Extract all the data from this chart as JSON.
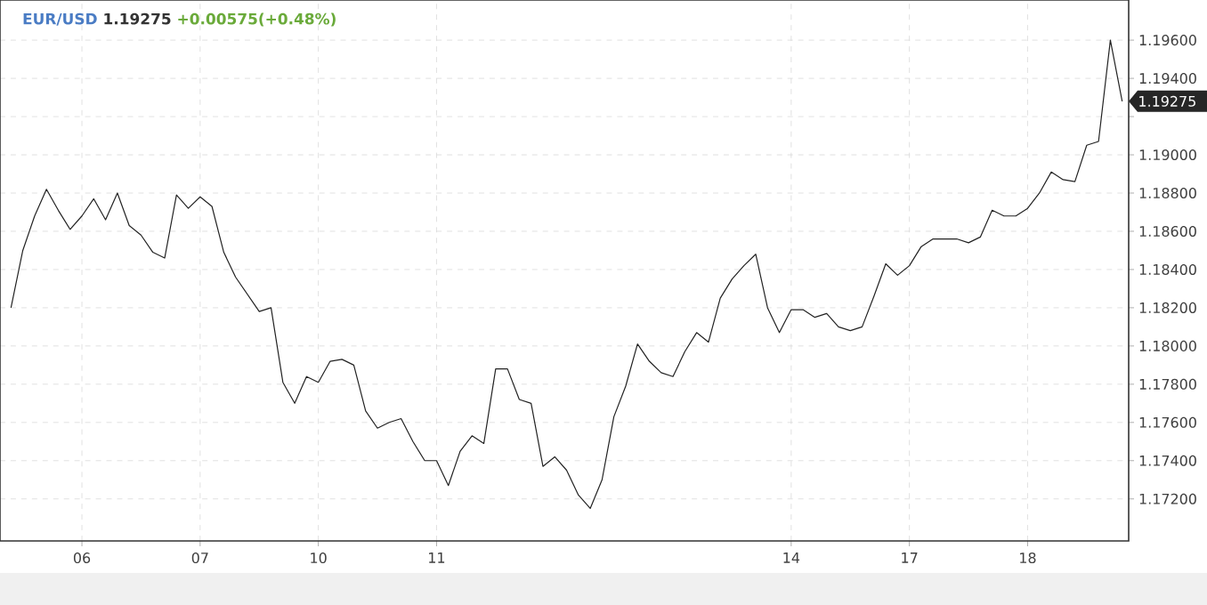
{
  "chart_data": {
    "type": "line",
    "title": "EUR/USD",
    "annotations": [
      "1.19275",
      "+0.00575(+0.48%)",
      "1.19275"
    ],
    "categories": [
      null,
      null,
      null,
      null,
      null,
      null,
      "06",
      null,
      null,
      null,
      null,
      null,
      null,
      null,
      null,
      null,
      "07",
      null,
      null,
      null,
      null,
      null,
      null,
      null,
      null,
      null,
      "10",
      null,
      null,
      null,
      null,
      null,
      null,
      null,
      null,
      null,
      "11",
      null,
      null,
      null,
      null,
      null,
      null,
      null,
      null,
      null,
      null,
      null,
      null,
      null,
      null,
      null,
      null,
      null,
      null,
      null,
      null,
      null,
      null,
      null,
      null,
      null,
      null,
      null,
      null,
      null,
      "14",
      null,
      null,
      null,
      null,
      null,
      null,
      null,
      null,
      null,
      "17",
      null,
      null,
      null,
      null,
      null,
      null,
      null,
      null,
      null,
      "18",
      null,
      null,
      null,
      null,
      null,
      null,
      null,
      null
    ],
    "series": [
      {
        "color": "#222222",
        "values": [
          1.182,
          1.185,
          1.1868,
          1.1882,
          1.1871,
          1.1861,
          1.1868,
          1.1877,
          1.1866,
          1.188,
          1.1863,
          1.1858,
          1.1849,
          1.1846,
          1.1879,
          1.1872,
          1.1878,
          1.1873,
          1.1849,
          1.1836,
          1.1827,
          1.1818,
          1.182,
          1.1781,
          1.177,
          1.1784,
          1.1781,
          1.1792,
          1.1793,
          1.179,
          1.1766,
          1.1757,
          1.176,
          1.1762,
          1.175,
          1.174,
          1.174,
          1.1727,
          1.1745,
          1.1753,
          1.1749,
          1.1788,
          1.1788,
          1.1772,
          1.177,
          1.1737,
          1.1742,
          1.1735,
          1.1722,
          1.1715,
          1.173,
          1.1763,
          1.1779,
          1.1801,
          1.1792,
          1.1786,
          1.1784,
          1.1797,
          1.1807,
          1.1802,
          1.1825,
          1.1835,
          1.1842,
          1.1848,
          1.182,
          1.1807,
          1.1819,
          1.1819,
          1.1815,
          1.1817,
          1.181,
          1.1808,
          1.181,
          1.1826,
          1.1843,
          1.1837,
          1.1842,
          1.1852,
          1.1856,
          1.1856,
          1.1856,
          1.1854,
          1.1857,
          1.1871,
          1.1868,
          1.1868,
          1.1872,
          1.188,
          1.1891,
          1.1887,
          1.1886,
          1.1905,
          1.1907,
          1.196,
          1.1928
        ]
      }
    ],
    "ylim": [
      1.1698,
      1.1981
    ],
    "yticks": [
      {
        "value": 1.172,
        "label": "1.17200"
      },
      {
        "value": 1.174,
        "label": "1.17400"
      },
      {
        "value": 1.176,
        "label": "1.17600"
      },
      {
        "value": 1.178,
        "label": "1.17800"
      },
      {
        "value": 1.18,
        "label": "1.18000"
      },
      {
        "value": 1.182,
        "label": "1.18200"
      },
      {
        "value": 1.184,
        "label": "1.18400"
      },
      {
        "value": 1.186,
        "label": "1.18600"
      },
      {
        "value": 1.188,
        "label": "1.18800"
      },
      {
        "value": 1.19,
        "label": "1.19000"
      },
      {
        "value": 1.192,
        "label": null
      },
      {
        "value": 1.194,
        "label": "1.19400"
      },
      {
        "value": 1.196,
        "label": "1.19600"
      }
    ],
    "grid": true,
    "marker": "none",
    "line_style": "solid"
  }
}
